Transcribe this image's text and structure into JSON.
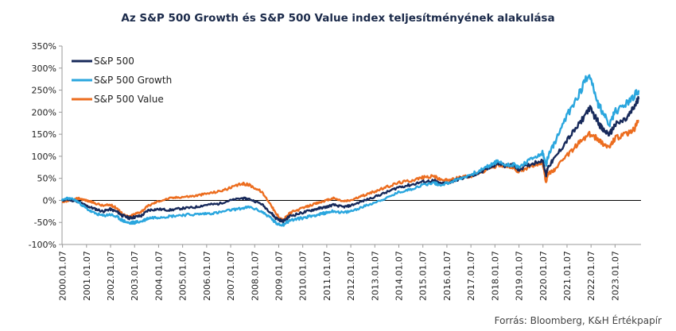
{
  "title": "Az S&P 500 Growth és S&P 500 Value index teljesítményének alakulása",
  "source": "Forrás: Bloomberg, K&H Értékpapír",
  "chart_data": {
    "type": "line",
    "title": "Az S&P 500 Growth és S&P 500 Value index teljesítményének alakulása",
    "ylim": [
      -100,
      350
    ],
    "y_ticks": [
      "-100%",
      "-50%",
      "0%",
      "50%",
      "100%",
      "150%",
      "200%",
      "250%",
      "300%",
      "350%"
    ],
    "y_tick_values": [
      -100,
      -50,
      0,
      50,
      100,
      150,
      200,
      250,
      300,
      350
    ],
    "x_ticks": [
      "2000.01.07",
      "2001.01.07",
      "2002.01.07",
      "2003.01.07",
      "2004.01.07",
      "2005.01.07",
      "2006.01.07",
      "2007.01.07",
      "2008.01.07",
      "2009.01.07",
      "2010.01.07",
      "2011.01.07",
      "2012.01.07",
      "2013.01.07",
      "2014.01.07",
      "2015.01.07",
      "2016.01.07",
      "2017.01.07",
      "2018.01.07",
      "2019.01.07",
      "2020.01.07",
      "2021.01.07",
      "2022.01.07",
      "2023.01.07"
    ],
    "x_tick_years": [
      2000,
      2001,
      2002,
      2003,
      2004,
      2005,
      2006,
      2007,
      2008,
      2009,
      2010,
      2011,
      2012,
      2013,
      2014,
      2015,
      2016,
      2017,
      2018,
      2019,
      2020,
      2021,
      2022,
      2023
    ],
    "xlim": [
      2000.0,
      2024.1
    ],
    "legend_position": "top-left",
    "series": [
      {
        "name": "S&P 500",
        "color": "#17295a",
        "x": [
          2000.0,
          2000.2,
          2000.5,
          2000.7,
          2001.0,
          2001.3,
          2001.7,
          2002.0,
          2002.3,
          2002.5,
          2002.8,
          2003.0,
          2003.3,
          2003.6,
          2004.0,
          2004.5,
          2005.0,
          2005.5,
          2006.0,
          2006.5,
          2007.0,
          2007.5,
          2007.8,
          2008.3,
          2008.7,
          2008.9,
          2009.2,
          2009.5,
          2010.0,
          2010.4,
          2010.7,
          2011.0,
          2011.3,
          2011.7,
          2012.0,
          2012.5,
          2013.0,
          2013.5,
          2014.0,
          2014.5,
          2015.0,
          2015.5,
          2015.7,
          2016.1,
          2016.5,
          2017.0,
          2017.5,
          2018.0,
          2018.1,
          2018.5,
          2018.8,
          2019.0,
          2019.5,
          2020.0,
          2020.15,
          2020.22,
          2020.5,
          2021.0,
          2021.5,
          2021.95,
          2022.3,
          2022.5,
          2022.8,
          2023.0,
          2023.5,
          2023.8,
          2024.0
        ],
        "values": [
          0,
          2,
          -1,
          -3,
          -12,
          -18,
          -25,
          -20,
          -26,
          -34,
          -40,
          -38,
          -35,
          -22,
          -20,
          -22,
          -18,
          -16,
          -10,
          -8,
          0,
          5,
          3,
          -8,
          -28,
          -40,
          -48,
          -35,
          -28,
          -22,
          -18,
          -15,
          -10,
          -15,
          -12,
          -2,
          8,
          18,
          30,
          35,
          42,
          45,
          38,
          40,
          48,
          55,
          65,
          80,
          85,
          78,
          80,
          70,
          82,
          92,
          58,
          75,
          95,
          135,
          170,
          210,
          180,
          160,
          150,
          170,
          185,
          210,
          230
        ]
      },
      {
        "name": "S&P 500 Growth",
        "color": "#2aa6de",
        "x": [
          2000.0,
          2000.2,
          2000.5,
          2000.7,
          2001.0,
          2001.3,
          2001.7,
          2002.0,
          2002.3,
          2002.5,
          2002.8,
          2003.0,
          2003.3,
          2003.6,
          2004.0,
          2004.5,
          2005.0,
          2005.5,
          2006.0,
          2006.5,
          2007.0,
          2007.5,
          2007.8,
          2008.3,
          2008.7,
          2008.9,
          2009.2,
          2009.5,
          2010.0,
          2010.4,
          2010.7,
          2011.0,
          2011.3,
          2011.7,
          2012.0,
          2012.5,
          2013.0,
          2013.5,
          2014.0,
          2014.5,
          2015.0,
          2015.5,
          2015.7,
          2016.1,
          2016.5,
          2017.0,
          2017.5,
          2018.0,
          2018.1,
          2018.5,
          2018.8,
          2019.0,
          2019.5,
          2020.0,
          2020.15,
          2020.22,
          2020.5,
          2021.0,
          2021.5,
          2021.95,
          2022.3,
          2022.5,
          2022.8,
          2023.0,
          2023.5,
          2023.8,
          2024.0
        ],
        "values": [
          0,
          5,
          2,
          -5,
          -18,
          -28,
          -35,
          -32,
          -38,
          -45,
          -52,
          -50,
          -48,
          -40,
          -38,
          -36,
          -33,
          -32,
          -30,
          -28,
          -22,
          -18,
          -15,
          -25,
          -40,
          -52,
          -55,
          -45,
          -40,
          -35,
          -32,
          -28,
          -24,
          -28,
          -25,
          -15,
          -5,
          5,
          18,
          25,
          35,
          40,
          35,
          40,
          48,
          58,
          70,
          85,
          88,
          80,
          82,
          75,
          92,
          108,
          80,
          98,
          130,
          190,
          240,
          290,
          220,
          200,
          170,
          200,
          220,
          235,
          250
        ]
      },
      {
        "name": "S&P 500 Value",
        "color": "#ec6d1f",
        "x": [
          2000.0,
          2000.2,
          2000.5,
          2000.7,
          2001.0,
          2001.3,
          2001.7,
          2002.0,
          2002.3,
          2002.5,
          2002.8,
          2003.0,
          2003.3,
          2003.6,
          2004.0,
          2004.5,
          2005.0,
          2005.5,
          2006.0,
          2006.5,
          2007.0,
          2007.5,
          2007.8,
          2008.3,
          2008.7,
          2008.9,
          2009.2,
          2009.5,
          2010.0,
          2010.4,
          2010.7,
          2011.0,
          2011.3,
          2011.7,
          2012.0,
          2012.5,
          2013.0,
          2013.5,
          2014.0,
          2014.5,
          2015.0,
          2015.5,
          2015.7,
          2016.1,
          2016.5,
          2017.0,
          2017.5,
          2018.0,
          2018.1,
          2018.5,
          2018.8,
          2019.0,
          2019.5,
          2020.0,
          2020.15,
          2020.22,
          2020.5,
          2021.0,
          2021.5,
          2021.95,
          2022.3,
          2022.5,
          2022.8,
          2023.0,
          2023.5,
          2023.8,
          2024.0
        ],
        "values": [
          -5,
          -2,
          2,
          5,
          0,
          -5,
          -12,
          -10,
          -18,
          -30,
          -38,
          -32,
          -25,
          -12,
          -2,
          5,
          8,
          10,
          15,
          20,
          28,
          38,
          35,
          20,
          -10,
          -30,
          -45,
          -28,
          -18,
          -10,
          -5,
          0,
          5,
          -2,
          0,
          10,
          20,
          30,
          40,
          45,
          52,
          55,
          48,
          45,
          52,
          55,
          65,
          75,
          82,
          78,
          75,
          65,
          78,
          85,
          40,
          60,
          70,
          100,
          130,
          150,
          140,
          130,
          120,
          140,
          150,
          160,
          180
        ]
      }
    ]
  }
}
